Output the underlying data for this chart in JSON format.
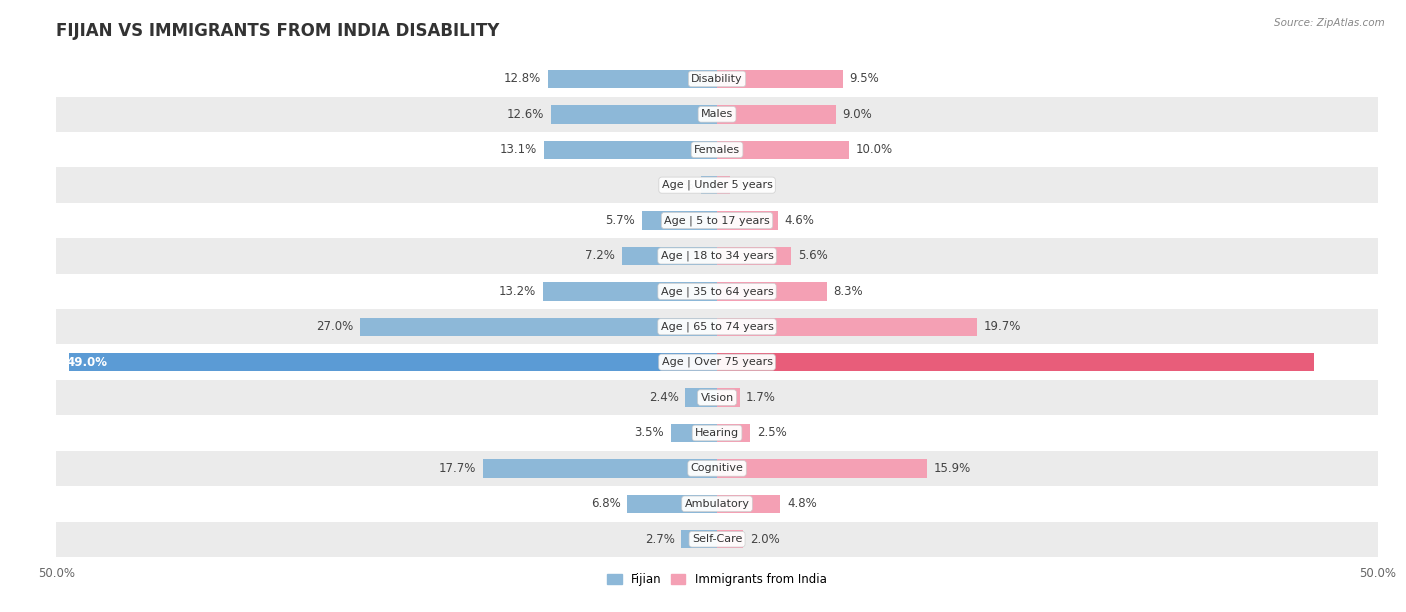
{
  "title": "FIJIAN VS IMMIGRANTS FROM INDIA DISABILITY",
  "source": "Source: ZipAtlas.com",
  "categories": [
    "Disability",
    "Males",
    "Females",
    "Age | Under 5 years",
    "Age | 5 to 17 years",
    "Age | 18 to 34 years",
    "Age | 35 to 64 years",
    "Age | 65 to 74 years",
    "Age | Over 75 years",
    "Vision",
    "Hearing",
    "Cognitive",
    "Ambulatory",
    "Self-Care"
  ],
  "fijian_values": [
    12.8,
    12.6,
    13.1,
    1.2,
    5.7,
    7.2,
    13.2,
    27.0,
    49.0,
    2.4,
    3.5,
    17.7,
    6.8,
    2.7
  ],
  "india_values": [
    9.5,
    9.0,
    10.0,
    1.0,
    4.6,
    5.6,
    8.3,
    19.7,
    45.2,
    1.7,
    2.5,
    15.9,
    4.8,
    2.0
  ],
  "fijian_color": "#8db8d8",
  "india_color": "#f4a0b4",
  "fijian_highlight_color": "#5b9bd5",
  "india_highlight_color": "#e85d7a",
  "highlight_row": 8,
  "max_value": 50.0,
  "bar_height": 0.52,
  "bg_color_odd": "#ffffff",
  "bg_color_even": "#ebebeb",
  "title_fontsize": 12,
  "label_fontsize": 8.5,
  "tick_fontsize": 8.5,
  "legend_labels": [
    "Fijian",
    "Immigrants from India"
  ]
}
